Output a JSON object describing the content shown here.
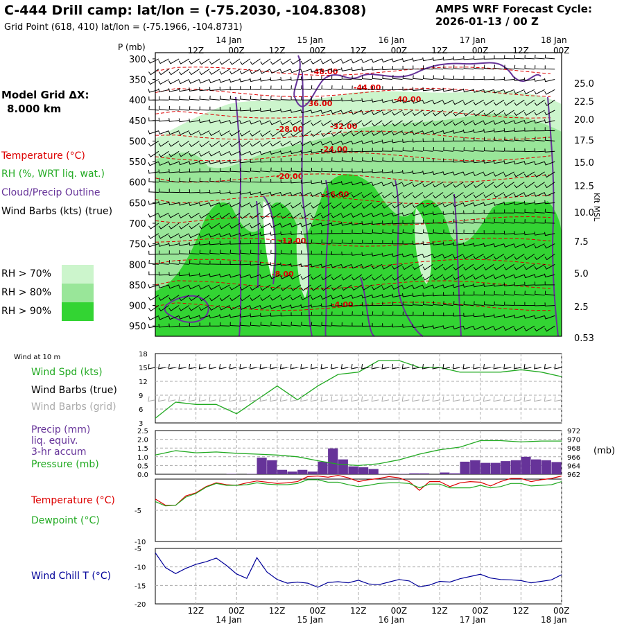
{
  "header": {
    "title": "C-444 Drill camp:  lat/lon = (-75.2030, -104.8308)",
    "subtitle": "Grid Point (618, 410) lat/lon = (-75.1966, -104.8731)",
    "forecast_label": "AMPS WRF Forecast Cycle:",
    "forecast_cycle": "2026-01-13 / 00  Z"
  },
  "left_panel": {
    "grid_label": "Model Grid ΔX:",
    "grid_value": "8.000 km",
    "legend": [
      {
        "text": "Temperature (°C)",
        "color": "#dd0000"
      },
      {
        "text": "RH (%, WRT liq. wat.)",
        "color": "#22aa22"
      },
      {
        "text": "Cloud/Precip Outline",
        "color": "#663399"
      },
      {
        "text": "Wind Barbs (kts) (true)",
        "color": "#000000"
      }
    ],
    "rh_legend": [
      {
        "text": "RH > 70%",
        "color": "#ccf5cc"
      },
      {
        "text": "RH > 80%",
        "color": "#99e699"
      },
      {
        "text": "RH > 90%",
        "color": "#33d433"
      }
    ],
    "wind10_label": "Wind at 10 m",
    "wind_legend": [
      {
        "text": "Wind Spd (kts)",
        "color": "#22aa22"
      },
      {
        "text": "Wind Barbs (true)",
        "color": "#000000"
      },
      {
        "text": "Wind Barbs (grid)",
        "color": "#aaaaaa"
      }
    ],
    "precip_legend": [
      {
        "text": "Precip (mm)",
        "color": "#663399"
      },
      {
        "text": "liq. equiv.",
        "color": "#663399"
      },
      {
        "text": "3-hr accum",
        "color": "#663399"
      },
      {
        "text": "Pressure (mb)",
        "color": "#22aa22"
      }
    ],
    "temp_legend": [
      {
        "text": "Temperature (°C)",
        "color": "#dd0000"
      },
      {
        "text": "Dewpoint (°C)",
        "color": "#22aa22"
      }
    ],
    "chill_legend": [
      {
        "text": "Wind Chill T (°C)",
        "color": "#000099"
      }
    ]
  },
  "right_labels": {
    "pressure_unit": "(mb)",
    "height_unit": "Kft MSL"
  },
  "chart_data": [
    {
      "type": "heatmap",
      "name": "cross-section",
      "pressure_axis_label": "P (mb)",
      "pressure_ticks": [
        "300",
        "350",
        "400",
        "450",
        "500",
        "550",
        "600",
        "650",
        "700",
        "750",
        "800",
        "850",
        "900",
        "950"
      ],
      "height_ticks": [
        "25.0",
        "22.5",
        "20.0",
        "17.5",
        "15.0",
        "12.5",
        "10.0",
        "7.5",
        "5.0",
        "2.5",
        "0.53"
      ],
      "time_ticks_top": [
        "12Z",
        "00Z",
        "12Z",
        "00Z",
        "12Z",
        "00Z",
        "12Z",
        "00Z",
        "12Z",
        "00Z"
      ],
      "date_ticks_top": [
        "14 Jan",
        "15 Jan",
        "16 Jan",
        "17 Jan",
        "18 Jan"
      ],
      "isotherm_labels": [
        "-48.00",
        "-44.00",
        "-40.00",
        "-36.00",
        "-32.00",
        "-28.00",
        "-24.00",
        "-20.00",
        "-16.00",
        "-12.00",
        "-8.00",
        "-4.00"
      ],
      "isotherm_values": [
        -48,
        -44,
        -40,
        -36,
        -32,
        -28,
        -24,
        -20,
        -16,
        -12,
        -8,
        -4
      ]
    },
    {
      "type": "line",
      "name": "wind-speed",
      "ylim": [
        3,
        18
      ],
      "yticks": [
        "18",
        "15",
        "12",
        "9",
        "6",
        "3"
      ],
      "x_hours": [
        0,
        6,
        12,
        18,
        24,
        30,
        36,
        42,
        48,
        54,
        60,
        66,
        72,
        78,
        84,
        90,
        96,
        102,
        108,
        114,
        120
      ],
      "values": [
        4,
        7.5,
        7,
        7,
        5,
        8,
        11,
        8,
        11,
        13.5,
        14,
        16.5,
        16.5,
        15,
        15,
        14,
        14,
        14,
        14.5,
        14,
        13
      ],
      "values_b": [
        null,
        null,
        null,
        null,
        null,
        null,
        null,
        null,
        null,
        null,
        null,
        null,
        null,
        null,
        null,
        null,
        null,
        null,
        null,
        null,
        null
      ]
    },
    {
      "type": "bar",
      "name": "precip-pressure",
      "ylim": [
        0,
        2.5
      ],
      "yticks": [
        "2.5",
        "2.0",
        "1.5",
        "1.0",
        "0.5",
        "0.0"
      ],
      "y2ticks": [
        "972",
        "970",
        "968",
        "966",
        "964",
        "962"
      ],
      "y2lim": [
        962,
        972
      ],
      "x_hours": [
        0,
        3,
        6,
        9,
        12,
        15,
        18,
        21,
        24,
        27,
        30,
        33,
        36,
        39,
        42,
        45,
        48,
        51,
        54,
        57,
        60,
        63,
        66,
        69,
        72,
        75,
        78,
        81,
        84,
        87,
        90,
        93,
        96,
        99,
        102,
        105,
        108,
        111,
        114,
        117
      ],
      "precip": [
        0,
        0,
        0,
        0,
        0,
        0,
        0,
        0.02,
        0,
        0.02,
        0.95,
        0.8,
        0.25,
        0.15,
        0.25,
        0.15,
        0.72,
        1.48,
        0.85,
        0.45,
        0.4,
        0.3,
        0.02,
        0,
        0.02,
        0.05,
        0.05,
        0,
        0.1,
        0.05,
        0.72,
        0.8,
        0.65,
        0.65,
        0.75,
        0.8,
        1.0,
        0.85,
        0.8,
        0.7
      ],
      "pressure_hours": [
        0,
        6,
        12,
        18,
        24,
        30,
        36,
        42,
        48,
        54,
        60,
        66,
        72,
        78,
        84,
        90,
        96,
        102,
        108,
        114,
        120
      ],
      "pressure": [
        966.4,
        967.4,
        966.9,
        967.1,
        966.8,
        966.6,
        966.4,
        966.0,
        965.1,
        964.3,
        964.0,
        964.4,
        965.3,
        966.6,
        967.6,
        968.2,
        969.7,
        969.7,
        969.4,
        969.6,
        969.6
      ]
    },
    {
      "type": "line",
      "name": "temperature-dewpoint",
      "ylim": [
        -10,
        0
      ],
      "yticks": [
        "-5",
        "-10"
      ],
      "x_hours": [
        0,
        3,
        6,
        9,
        12,
        15,
        18,
        21,
        24,
        27,
        30,
        33,
        36,
        39,
        42,
        45,
        48,
        51,
        54,
        57,
        60,
        63,
        66,
        69,
        72,
        75,
        78,
        81,
        84,
        87,
        90,
        93,
        96,
        99,
        102,
        105,
        108,
        111,
        114,
        117,
        120
      ],
      "temperature": [
        -3.2,
        -4.2,
        -4.2,
        -2.7,
        -2.2,
        -1.2,
        -0.6,
        -0.9,
        -1.0,
        -0.6,
        -0.3,
        -0.5,
        -0.7,
        -0.6,
        -0.4,
        0.4,
        0.5,
        0.3,
        0.6,
        0.2,
        -0.4,
        -0.1,
        0.1,
        0.4,
        0.2,
        -0.4,
        -1.8,
        -0.4,
        -0.4,
        -1.2,
        -0.6,
        -0.4,
        -0.5,
        -1.1,
        -0.4,
        0.1,
        0.1,
        -0.4,
        -0.1,
        0.1,
        0.5
      ],
      "dewpoint": [
        -3.6,
        -4.3,
        -4.2,
        -2.9,
        -2.3,
        -1.3,
        -0.7,
        -1.0,
        -1.0,
        -0.9,
        -0.6,
        -0.8,
        -0.9,
        -0.9,
        -0.7,
        -0.1,
        -0.1,
        -0.5,
        -0.5,
        -0.9,
        -1.2,
        -1.0,
        -0.7,
        -0.6,
        -0.6,
        -0.7,
        -1.4,
        -0.8,
        -0.8,
        -1.4,
        -1.4,
        -1.4,
        -1.0,
        -1.4,
        -1.2,
        -0.7,
        -0.7,
        -1.1,
        -1.0,
        -0.9,
        -0.4
      ]
    },
    {
      "type": "line",
      "name": "wind-chill",
      "ylim": [
        -20,
        -5
      ],
      "yticks": [
        "-5",
        "-10",
        "-15",
        "-20"
      ],
      "x_hours": [
        0,
        3,
        6,
        9,
        12,
        15,
        18,
        21,
        24,
        27,
        30,
        33,
        36,
        39,
        42,
        45,
        48,
        51,
        54,
        57,
        60,
        63,
        66,
        69,
        72,
        75,
        78,
        81,
        84,
        87,
        90,
        93,
        96,
        99,
        102,
        105,
        108,
        111,
        114,
        117,
        120
      ],
      "values": [
        -6.2,
        -10.2,
        -11.8,
        -10.4,
        -9.3,
        -8.6,
        -7.6,
        -9.6,
        -11.9,
        -13.1,
        -7.5,
        -11.4,
        -13.4,
        -14.4,
        -14.1,
        -14.4,
        -15.5,
        -14.2,
        -14.0,
        -14.3,
        -13.6,
        -14.6,
        -14.8,
        -14.1,
        -13.4,
        -13.8,
        -15.4,
        -14.9,
        -13.9,
        -14.1,
        -13.2,
        -12.6,
        -12.0,
        -13.0,
        -13.4,
        -13.5,
        -13.7,
        -14.3,
        -13.9,
        -13.5,
        -12.1
      ]
    },
    {
      "type": "axis",
      "name": "bottom-time-axis",
      "time_ticks": [
        "12Z",
        "00Z",
        "12Z",
        "00Z",
        "12Z",
        "00Z",
        "12Z",
        "00Z",
        "12Z",
        "00Z"
      ],
      "date_ticks": [
        "14 Jan",
        "15 Jan",
        "16 Jan",
        "17 Jan",
        "18 Jan"
      ]
    }
  ]
}
